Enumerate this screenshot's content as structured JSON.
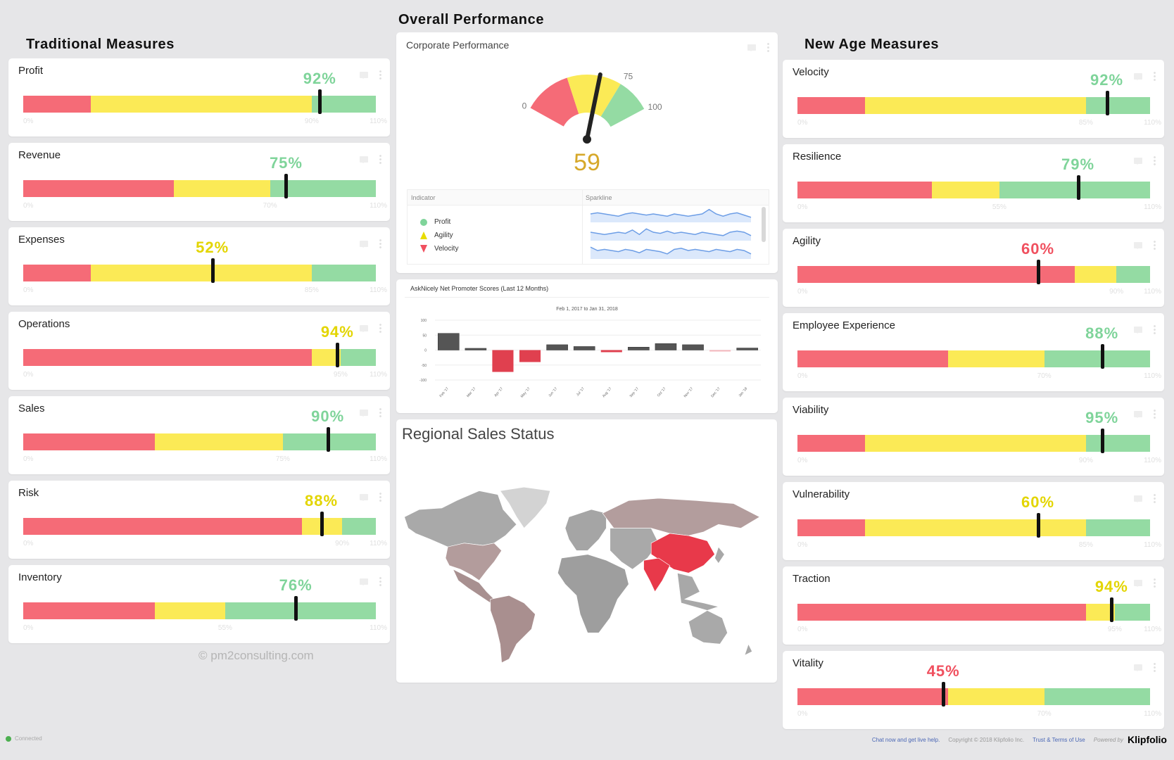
{
  "sections": {
    "traditional": "Traditional Measures",
    "overall": "Overall Performance",
    "new_age": "New Age Measures"
  },
  "colors": {
    "red": "#f56b77",
    "yellow": "#fbea56",
    "green": "#94dba3",
    "label_red": "#f0505f",
    "label_yellow": "#e3d500",
    "label_green": "#7fd49a",
    "gauge_value": "#d6a82a"
  },
  "scale_max": 110,
  "traditional_measures": [
    {
      "title": "Profit",
      "value_label": "92%",
      "status": "green",
      "red_end": 21,
      "yellow_end": 90,
      "marker": 92.5,
      "ticks": [
        "0%",
        "90%",
        "110%"
      ]
    },
    {
      "title": "Revenue",
      "value_label": "75%",
      "status": "green",
      "red_end": 47,
      "yellow_end": 77,
      "marker": 82,
      "ticks": [
        "0%",
        "70%",
        "110%"
      ]
    },
    {
      "title": "Expenses",
      "value_label": "52%",
      "status": "yellow",
      "red_end": 21,
      "yellow_end": 90,
      "marker": 59,
      "ticks": [
        "0%",
        "85%",
        "110%"
      ]
    },
    {
      "title": "Operations",
      "value_label": "94%",
      "status": "yellow",
      "red_end": 90,
      "yellow_end": 99,
      "marker": 98,
      "ticks": [
        "0%",
        "95%",
        "110%"
      ]
    },
    {
      "title": "Sales",
      "value_label": "90%",
      "status": "green",
      "red_end": 41,
      "yellow_end": 81,
      "marker": 95,
      "ticks": [
        "0%",
        "75%",
        "110%"
      ]
    },
    {
      "title": "Risk",
      "value_label": "88%",
      "status": "yellow",
      "red_end": 87,
      "yellow_end": 99.5,
      "marker": 93,
      "ticks": [
        "0%",
        "90%",
        "110%"
      ]
    },
    {
      "title": "Inventory",
      "value_label": "76%",
      "status": "green",
      "red_end": 41,
      "yellow_end": 63,
      "marker": 85,
      "ticks": [
        "0%",
        "55%",
        "110%"
      ]
    }
  ],
  "new_age_measures": [
    {
      "title": "Velocity",
      "value_label": "92%",
      "status": "green",
      "red_end": 21,
      "yellow_end": 90,
      "marker": 96.5,
      "ticks": [
        "0%",
        "85%",
        "110%"
      ]
    },
    {
      "title": "Resilience",
      "value_label": "79%",
      "status": "green",
      "red_end": 42,
      "yellow_end": 63,
      "marker": 87.5,
      "ticks": [
        "0%",
        "55%",
        "110%"
      ]
    },
    {
      "title": "Agility",
      "value_label": "60%",
      "status": "red",
      "red_end": 86.5,
      "yellow_end": 99.5,
      "marker": 75,
      "ticks": [
        "0%",
        "90%",
        "110%"
      ]
    },
    {
      "title": "Employee Experience",
      "value_label": "88%",
      "status": "green",
      "red_end": 47,
      "yellow_end": 77,
      "marker": 95,
      "ticks": [
        "0%",
        "70%",
        "110%"
      ]
    },
    {
      "title": "Viability",
      "value_label": "95%",
      "status": "green",
      "red_end": 21,
      "yellow_end": 90,
      "marker": 95,
      "ticks": [
        "0%",
        "90%",
        "110%"
      ]
    },
    {
      "title": "Vulnerability",
      "value_label": "60%",
      "status": "yellow",
      "red_end": 21,
      "yellow_end": 90,
      "marker": 75,
      "ticks": [
        "0%",
        "85%",
        "110%"
      ]
    },
    {
      "title": "Traction",
      "value_label": "94%",
      "status": "yellow",
      "red_end": 90,
      "yellow_end": 99,
      "marker": 98,
      "ticks": [
        "0%",
        "95%",
        "110%"
      ]
    },
    {
      "title": "Vitality",
      "value_label": "45%",
      "status": "red",
      "red_end": 47,
      "yellow_end": 77,
      "marker": 45.5,
      "ticks": [
        "0%",
        "70%",
        "110%"
      ]
    }
  ],
  "corporate_performance": {
    "title": "Corporate Performance",
    "gauge": {
      "min": 0,
      "max": 100,
      "value": 59,
      "value_label": "59",
      "bands": [
        35,
        75
      ],
      "min_label": "0",
      "max_label": "100",
      "threshold_label": "75"
    },
    "table": {
      "headers": [
        "Indicator",
        "Sparkline"
      ],
      "rows": [
        {
          "label": "Profit",
          "shape": "circle",
          "color": "#7fd49a",
          "spark": [
            5,
            6,
            5,
            4,
            3,
            5,
            6,
            5,
            4,
            5,
            4,
            3,
            5,
            4,
            3,
            4,
            5,
            9,
            5,
            3,
            5,
            6,
            4,
            2
          ]
        },
        {
          "label": "Agility",
          "shape": "triangle-up",
          "color": "#e8dc00",
          "spark": [
            5,
            4,
            3,
            4,
            5,
            4,
            7,
            3,
            8,
            5,
            4,
            6,
            4,
            5,
            4,
            3,
            5,
            4,
            3,
            2,
            5,
            6,
            5,
            2
          ]
        },
        {
          "label": "Velocity",
          "shape": "triangle-down",
          "color": "#f0505f",
          "spark": [
            8,
            5,
            6,
            5,
            4,
            6,
            5,
            3,
            6,
            5,
            4,
            2,
            6,
            7,
            5,
            6,
            5,
            4,
            6,
            5,
            4,
            6,
            5,
            2
          ]
        }
      ]
    }
  },
  "nps_chart": {
    "card_title": "AskNicely Net Promoter Scores (Last 12 Months)",
    "chart_data": {
      "type": "bar",
      "title": "Feb 1, 2017 to Jan 31, 2018",
      "categories": [
        "Feb '17",
        "Mar '17",
        "Apr '17",
        "May '17",
        "Jun '17",
        "Jul '17",
        "Aug '17",
        "Sep '17",
        "Oct '17",
        "Nov '17",
        "Dec '17",
        "Jan '18"
      ],
      "values": [
        56,
        6,
        -73,
        -40,
        18,
        12,
        -7,
        10,
        22,
        18,
        -2,
        7
      ],
      "ylim": [
        -100,
        100
      ],
      "yticks": [
        "100",
        "50",
        "0",
        "-50",
        "-100"
      ],
      "grid": true,
      "colors": {
        "positive": "#555555",
        "negative": "#e0404f",
        "near_zero_negative": "#f6b7bd"
      }
    }
  },
  "map": {
    "title": "Regional Sales Status"
  },
  "watermark": "© pm2consulting.com",
  "footer": {
    "status": "Connected",
    "chat": "Chat now and get live help.",
    "copyright": "Copyright © 2018 Klipfolio Inc.",
    "terms": "Trust & Terms of Use",
    "powered": "Powered by",
    "logo": "Klipfolio"
  }
}
